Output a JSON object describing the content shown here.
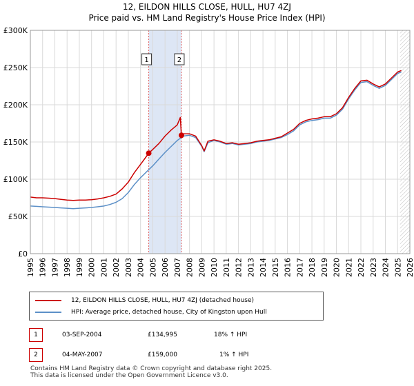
{
  "header": {
    "title_line1": "12, EILDON HILLS CLOSE, HULL, HU7 4ZJ",
    "title_line2": "Price paid vs. HM Land Registry's House Price Index (HPI)"
  },
  "colors": {
    "property": "#cc0000",
    "hpi": "#5b8fc7",
    "shade": "#dde6f5",
    "grid": "#d9d9d9"
  },
  "chart_data": {
    "type": "line",
    "x_axis": {
      "min": 1995,
      "max": 2026,
      "ticks": [
        "1995",
        "1996",
        "1997",
        "1998",
        "1999",
        "2000",
        "2001",
        "2002",
        "2003",
        "2004",
        "2005",
        "2006",
        "2007",
        "2008",
        "2009",
        "2010",
        "2011",
        "2012",
        "2013",
        "2014",
        "2015",
        "2016",
        "2017",
        "2018",
        "2019",
        "2020",
        "2021",
        "2022",
        "2023",
        "2024",
        "2025",
        "2026"
      ]
    },
    "y_axis": {
      "min": 0,
      "max": 300000,
      "ticks": [
        0,
        50000,
        100000,
        150000,
        200000,
        250000,
        300000
      ],
      "tick_labels": [
        "£0",
        "£50K",
        "£100K",
        "£150K",
        "£200K",
        "£250K",
        "£300K"
      ]
    },
    "grid": true,
    "shaded_period": [
      2004.67,
      2007.34
    ],
    "future_hatch_from": 2025.2,
    "series": [
      {
        "name": "12, EILDON HILLS CLOSE, HULL, HU7 4ZJ (detached house)",
        "key": "property",
        "x": [
          1995.0,
          1995.5,
          1996.0,
          1996.5,
          1997.0,
          1997.5,
          1998.0,
          1998.5,
          1999.0,
          1999.5,
          2000.0,
          2000.5,
          2001.0,
          2001.5,
          2002.0,
          2002.5,
          2003.0,
          2003.5,
          2004.0,
          2004.5,
          2004.67,
          2005.0,
          2005.5,
          2006.0,
          2006.5,
          2007.0,
          2007.25,
          2007.34,
          2007.5,
          2008.0,
          2008.5,
          2009.0,
          2009.2,
          2009.5,
          2010.0,
          2010.5,
          2011.0,
          2011.5,
          2012.0,
          2012.5,
          2013.0,
          2013.5,
          2014.0,
          2014.5,
          2015.0,
          2015.5,
          2016.0,
          2016.5,
          2017.0,
          2017.5,
          2018.0,
          2018.5,
          2019.0,
          2019.5,
          2020.0,
          2020.5,
          2021.0,
          2021.5,
          2022.0,
          2022.5,
          2023.0,
          2023.5,
          2024.0,
          2024.5,
          2025.0,
          2025.3
        ],
        "y": [
          76000,
          75000,
          75000,
          74500,
          74000,
          73000,
          72000,
          71500,
          72000,
          72000,
          72500,
          73500,
          75000,
          77000,
          80000,
          87000,
          96000,
          109000,
          120000,
          131000,
          134995,
          140000,
          148000,
          158000,
          166000,
          173000,
          183000,
          159000,
          161000,
          161000,
          158000,
          145000,
          138000,
          151000,
          153000,
          151000,
          148000,
          149000,
          147000,
          148000,
          149000,
          151000,
          152000,
          153000,
          155000,
          157000,
          162000,
          167000,
          175000,
          179000,
          181000,
          182000,
          184000,
          184000,
          188000,
          196000,
          210000,
          222000,
          232000,
          233000,
          228000,
          224000,
          228000,
          236000,
          244000,
          246000
        ]
      },
      {
        "name": "HPI: Average price, detached house, City of Kingston upon Hull",
        "key": "hpi",
        "x": [
          1995.0,
          1995.5,
          1996.0,
          1996.5,
          1997.0,
          1997.5,
          1998.0,
          1998.5,
          1999.0,
          1999.5,
          2000.0,
          2000.5,
          2001.0,
          2001.5,
          2002.0,
          2002.5,
          2003.0,
          2003.5,
          2004.0,
          2004.5,
          2005.0,
          2005.5,
          2006.0,
          2006.5,
          2007.0,
          2007.5,
          2008.0,
          2008.5,
          2009.0,
          2009.2,
          2009.5,
          2010.0,
          2010.5,
          2011.0,
          2011.5,
          2012.0,
          2012.5,
          2013.0,
          2013.5,
          2014.0,
          2014.5,
          2015.0,
          2015.5,
          2016.0,
          2016.5,
          2017.0,
          2017.5,
          2018.0,
          2018.5,
          2019.0,
          2019.5,
          2020.0,
          2020.5,
          2021.0,
          2021.5,
          2022.0,
          2022.5,
          2023.0,
          2023.5,
          2024.0,
          2024.5,
          2025.0,
          2025.3
        ],
        "y": [
          64000,
          63500,
          63000,
          62500,
          62000,
          61500,
          61000,
          60500,
          61000,
          61500,
          62000,
          63000,
          64000,
          66000,
          69000,
          74000,
          82000,
          93000,
          102000,
          110000,
          118000,
          127000,
          136000,
          144000,
          152000,
          158000,
          159000,
          156000,
          144000,
          137000,
          149000,
          152000,
          150000,
          147000,
          148000,
          146000,
          147000,
          148000,
          150000,
          151000,
          152000,
          154000,
          156000,
          160000,
          165000,
          173000,
          177000,
          179000,
          180000,
          182000,
          182000,
          186000,
          194000,
          208000,
          220000,
          230000,
          231000,
          226000,
          222000,
          226000,
          234000,
          242000,
          244000
        ]
      }
    ],
    "markers": [
      {
        "label": "1",
        "x": 2004.67,
        "y": 134995
      },
      {
        "label": "2",
        "x": 2007.34,
        "y": 159000
      }
    ]
  },
  "legend": {
    "property_label": "12, EILDON HILLS CLOSE, HULL, HU7 4ZJ (detached house)",
    "hpi_label": "HPI: Average price, detached house, City of Kingston upon Hull"
  },
  "transactions": [
    {
      "num": "1",
      "date": "03-SEP-2004",
      "price": "£134,995",
      "hpi": "18% ↑ HPI"
    },
    {
      "num": "2",
      "date": "04-MAY-2007",
      "price": "£159,000",
      "hpi": "1% ↑ HPI"
    }
  ],
  "footer": {
    "line1": "Contains HM Land Registry data © Crown copyright and database right 2025.",
    "line2": "This data is licensed under the Open Government Licence v3.0."
  }
}
